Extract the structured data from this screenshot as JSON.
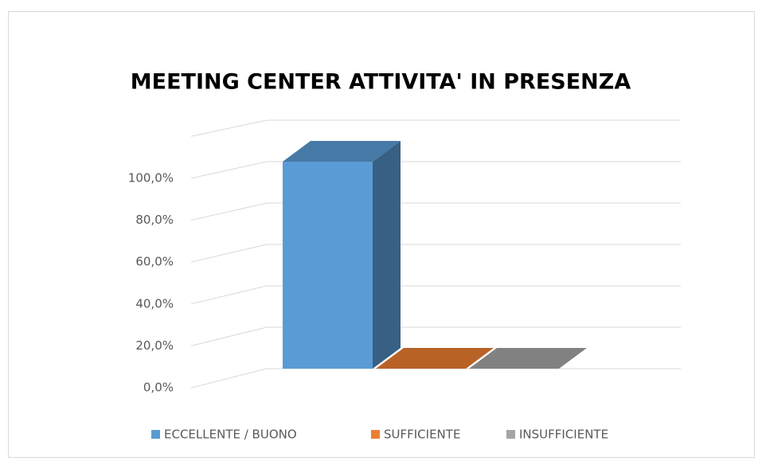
{
  "chart_data": {
    "type": "bar3d",
    "title": "MEETING CENTER ATTIVITA' IN PRESENZA",
    "categories": [
      null
    ],
    "series": [
      {
        "name": "ECCELLENTE / BUONO",
        "color": "#5b9bd5",
        "values": [
          100
        ]
      },
      {
        "name": "SUFFICIENTE",
        "color": "#ed7d31",
        "values": [
          0
        ]
      },
      {
        "name": "INSUFFICIENTE",
        "color": "#a5a5a5",
        "values": [
          0
        ]
      }
    ],
    "ylim": [
      0,
      120
    ],
    "yticks": [
      {
        "value": 0,
        "label": "0,0%"
      },
      {
        "value": 20,
        "label": "20,0%"
      },
      {
        "value": 40,
        "label": "40,0%"
      },
      {
        "value": 60,
        "label": "60,0%"
      },
      {
        "value": 80,
        "label": "80,0%"
      },
      {
        "value": 100,
        "label": "100,0%"
      }
    ],
    "grid": true,
    "legend": "bottom"
  }
}
